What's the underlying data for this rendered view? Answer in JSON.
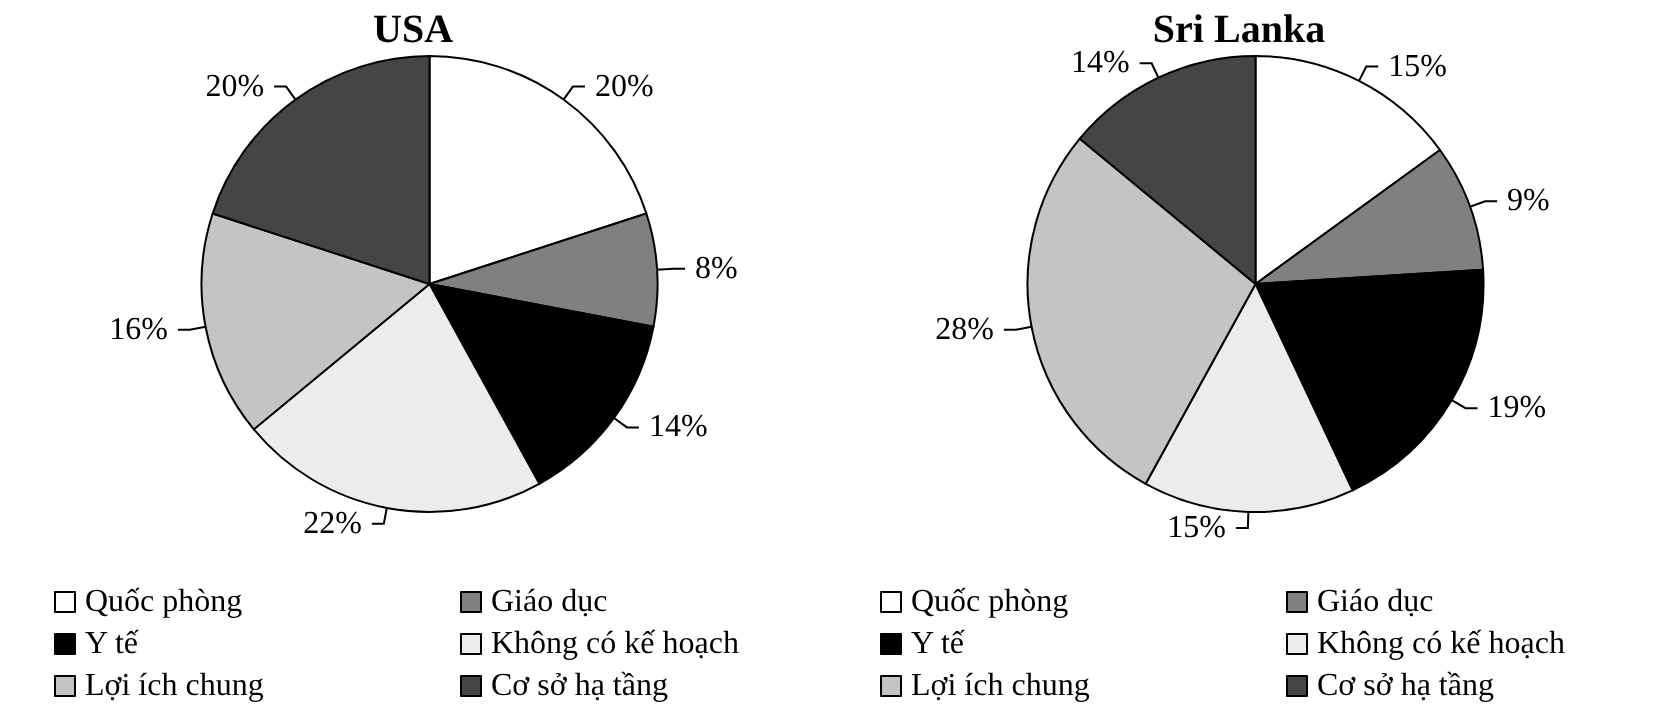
{
  "chart_data": [
    {
      "type": "pie",
      "title": "USA",
      "categories": [
        "Quốc phòng",
        "Giáo dục",
        "Y tế",
        "Không có kế hoạch",
        "Lợi ích chung",
        "Cơ sở hạ tầng"
      ],
      "values": [
        20,
        8,
        14,
        22,
        16,
        20
      ],
      "value_labels": [
        "20%",
        "8%",
        "14%",
        "22%",
        "16%",
        "20%"
      ],
      "colors": [
        "#ffffff",
        "#808080",
        "#000000",
        "#ececec",
        "#c4c4c4",
        "#454545"
      ],
      "legend": "bottom"
    },
    {
      "type": "pie",
      "title": "Sri Lanka",
      "categories": [
        "Quốc phòng",
        "Giáo dục",
        "Y tế",
        "Không có kế hoạch",
        "Lợi ích chung",
        "Cơ sở hạ tầng"
      ],
      "values": [
        15,
        9,
        19,
        15,
        28,
        14
      ],
      "value_labels": [
        "15%",
        "9%",
        "19%",
        "15%",
        "28%",
        "14%"
      ],
      "colors": [
        "#ffffff",
        "#808080",
        "#000000",
        "#ececec",
        "#c4c4c4",
        "#454545"
      ],
      "legend": "bottom"
    }
  ]
}
